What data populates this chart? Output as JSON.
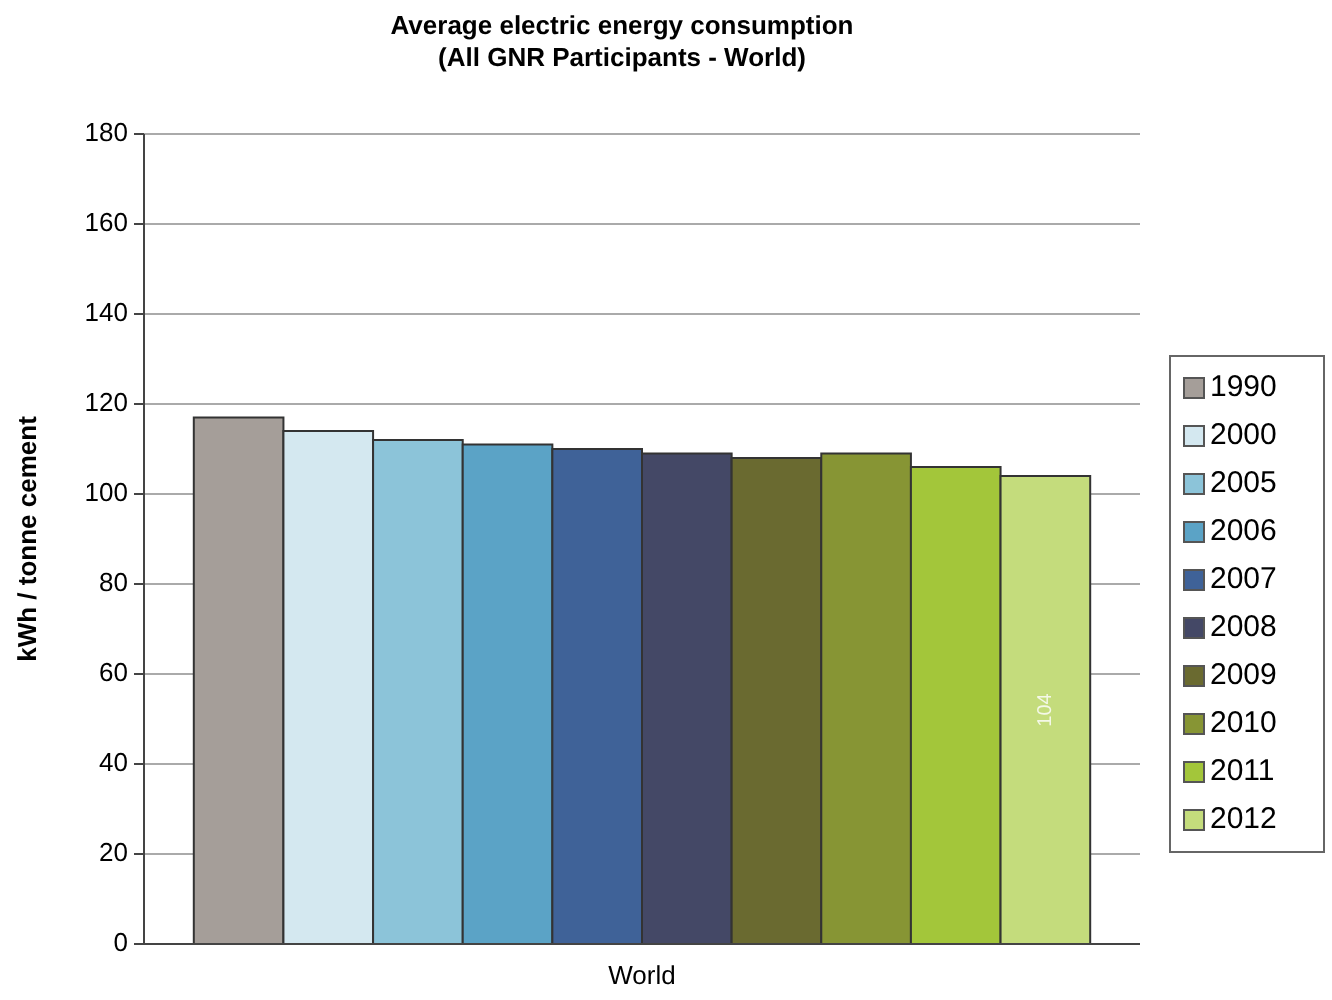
{
  "chart_data": {
    "type": "bar",
    "title": "Average electric energy consumption\n(All GNR Participants - World)",
    "ylabel": "kWh / tonne cement",
    "categories": [
      "World"
    ],
    "series": [
      {
        "name": "1990",
        "color": "#a59e99",
        "values": [
          117
        ]
      },
      {
        "name": "2000",
        "color": "#d4e8f0",
        "values": [
          114
        ]
      },
      {
        "name": "2005",
        "color": "#8cc4d9",
        "values": [
          112
        ]
      },
      {
        "name": "2006",
        "color": "#5ba3c6",
        "values": [
          111
        ]
      },
      {
        "name": "2007",
        "color": "#3f6298",
        "values": [
          110
        ]
      },
      {
        "name": "2008",
        "color": "#444866",
        "values": [
          109
        ]
      },
      {
        "name": "2009",
        "color": "#6a6a30",
        "values": [
          108
        ]
      },
      {
        "name": "2010",
        "color": "#879534",
        "values": [
          109
        ]
      },
      {
        "name": "2011",
        "color": "#a3c63a",
        "values": [
          106
        ]
      },
      {
        "name": "2012",
        "color": "#c4dc7c",
        "values": [
          104
        ],
        "value_labels": [
          "104"
        ]
      }
    ],
    "ylim": [
      0,
      180
    ],
    "yticks": [
      0,
      20,
      40,
      60,
      80,
      100,
      120,
      140,
      160,
      180
    ],
    "grid": "y",
    "legend": "right"
  }
}
